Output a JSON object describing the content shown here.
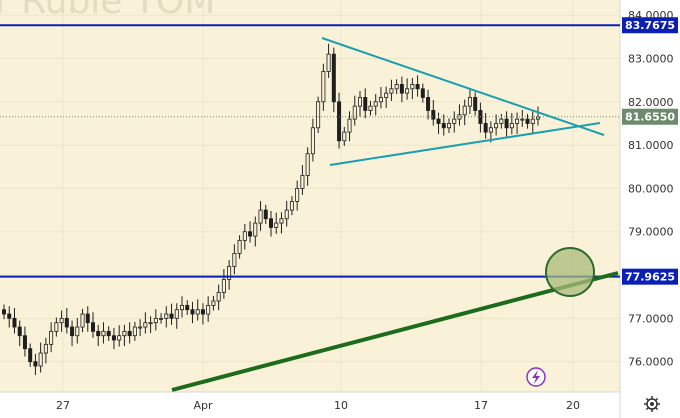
{
  "watermark": "r Ruble TOM",
  "colors": {
    "plot_bg": "#f9f2d8",
    "axis_bg": "#ffffff",
    "grid": "#ece6c8",
    "candle": "#1f1f1f",
    "level_line": "#0b1fb4",
    "price_line": "#6d8a6d",
    "triangle": "#1a9fb0",
    "trend": "#1d6b1d",
    "circle_fill": "#a9ba7a",
    "circle_stroke": "#2c6a2c",
    "watermark": "#e4dcc0",
    "badge_icon": "#8a2ec4"
  },
  "chart_data": {
    "type": "candlestick",
    "y_range": [
      75.3,
      84.35
    ],
    "y_ticks": [
      "76.0000",
      "77.0000",
      "78.0000",
      "79.0000",
      "80.0000",
      "81.0000",
      "82.0000",
      "83.0000",
      "84.0000"
    ],
    "x_ticks": [
      "27",
      "Apr",
      "10",
      "17",
      "20"
    ],
    "levels": [
      {
        "value": 83.7675,
        "label": "83.7675",
        "color": "#0b1fb4"
      },
      {
        "value": 77.9625,
        "label": "77.9625",
        "color": "#0b1fb4"
      }
    ],
    "current_price": {
      "value": 81.655,
      "label": "81.6550"
    },
    "closes": [
      77.1,
      77.0,
      76.8,
      76.6,
      76.3,
      76.0,
      75.9,
      76.2,
      76.4,
      76.7,
      76.9,
      77.0,
      76.8,
      76.6,
      76.8,
      77.1,
      76.9,
      76.7,
      76.6,
      76.7,
      76.6,
      76.5,
      76.6,
      76.7,
      76.6,
      76.8,
      76.8,
      76.9,
      76.9,
      77.0,
      77.0,
      77.1,
      77.0,
      77.2,
      77.3,
      77.2,
      77.1,
      77.2,
      77.1,
      77.3,
      77.4,
      77.6,
      77.9,
      78.2,
      78.5,
      78.8,
      79.0,
      78.9,
      79.2,
      79.5,
      79.3,
      79.1,
      79.2,
      79.3,
      79.5,
      79.7,
      80.0,
      80.3,
      80.8,
      81.4,
      82.0,
      82.7,
      83.1,
      82.0,
      81.1,
      81.3,
      81.6,
      81.9,
      82.1,
      81.8,
      81.9,
      82.0,
      82.1,
      82.2,
      82.3,
      82.4,
      82.2,
      82.3,
      82.4,
      82.3,
      82.1,
      81.8,
      81.6,
      81.5,
      81.4,
      81.5,
      81.6,
      81.7,
      81.9,
      82.1,
      81.8,
      81.5,
      81.3,
      81.4,
      81.5,
      81.6,
      81.4,
      81.5,
      81.6,
      81.6,
      81.5,
      81.6,
      81.65
    ],
    "triangle": {
      "upper": {
        "from": [
          322,
          38
        ],
        "to": [
          604,
          135
        ]
      },
      "lower": {
        "from": [
          330,
          165
        ],
        "to": [
          600,
          123
        ]
      }
    },
    "trendline": {
      "from": [
        172,
        390
      ],
      "to": [
        618,
        273
      ]
    },
    "highlight_circle": {
      "center": [
        570,
        272
      ],
      "r": 24
    }
  }
}
